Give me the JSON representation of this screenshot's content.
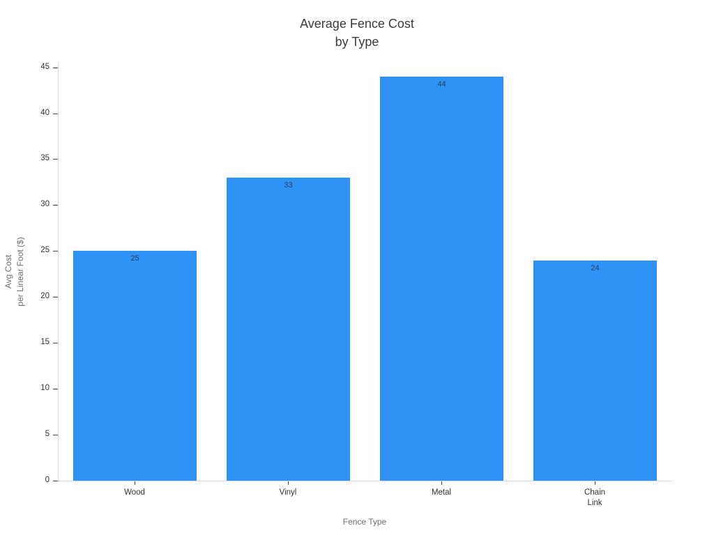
{
  "chart_data": {
    "type": "bar",
    "title": "Average Fence Cost by Type",
    "title_lines": [
      "Average Fence Cost",
      "by Type"
    ],
    "xlabel": "Fence Type",
    "ylabel": "Avg Cost per Linear Foot ($)",
    "ylabel_lines": [
      "Avg Cost",
      "per Linear Foot ($)"
    ],
    "categories": [
      "Wood",
      "Vinyl",
      "Metal",
      "Chain Link"
    ],
    "category_tick_lines": [
      [
        "Wood"
      ],
      [
        "Vinyl"
      ],
      [
        "Metal"
      ],
      [
        "Chain",
        "Link"
      ]
    ],
    "values": [
      25,
      33,
      44,
      24
    ],
    "bar_value_labels": [
      "25",
      "33",
      "44",
      "24"
    ],
    "value_labels_position": "inside-top",
    "yticks": [
      0,
      5,
      10,
      15,
      20,
      25,
      30,
      35,
      40,
      45
    ],
    "ylim": [
      0,
      45.5
    ],
    "grid": false,
    "legend_position": "none",
    "colors": {
      "background": "#ffffff",
      "bar": "#2F93F5",
      "bar_value_label": "#2a3f5f",
      "title": "#3b3b3b",
      "tick_label": "#333333",
      "tick_mark": "#444444",
      "axis_line": "#d9d9d9",
      "axis_title": "#6e6e6e"
    }
  }
}
